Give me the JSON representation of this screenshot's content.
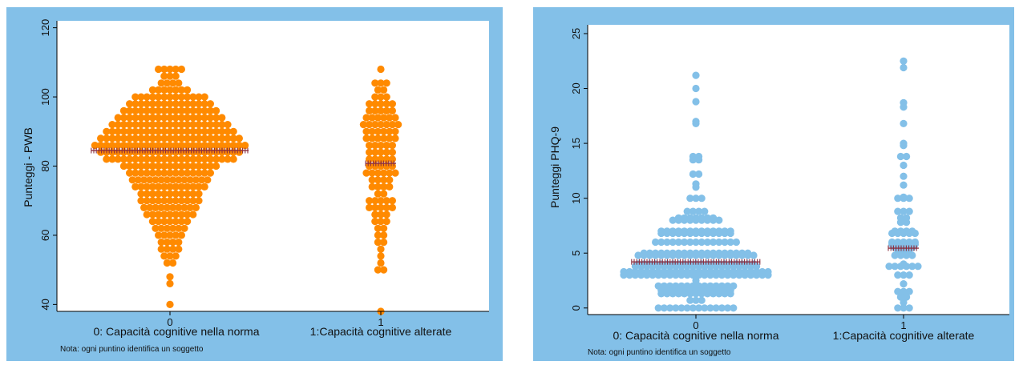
{
  "chart_data": [
    {
      "type": "scatter",
      "subtype": "dot-plot",
      "ylabel": "Punteggi - PWB",
      "ylim": [
        38,
        122
      ],
      "yticks": [
        "40",
        "60",
        "80",
        "100",
        "120"
      ],
      "categories": [
        "0",
        "1"
      ],
      "category_labels": [
        "0: Capacità cognitive nella norma",
        "1:Capacità cognitive alterate"
      ],
      "note": "Nota: ogni puntino identifica un soggetto",
      "marker_color": "#ff8a00",
      "mean_color": "#8b2e3f",
      "panel_color": "#83c0e8",
      "means": [
        84.5,
        80.8
      ],
      "groups": [
        {
          "category": "0",
          "values": [
            108,
            106,
            104,
            102,
            100,
            98,
            96,
            94,
            92,
            90,
            88,
            86,
            84,
            82,
            80,
            78,
            76,
            74,
            72,
            70,
            68,
            66,
            64,
            62,
            60,
            58,
            56,
            54,
            52,
            48,
            46,
            40
          ],
          "counts": [
            5,
            3,
            4,
            7,
            13,
            15,
            17,
            19,
            21,
            23,
            25,
            27,
            25,
            23,
            17,
            15,
            14,
            13,
            11,
            11,
            10,
            9,
            7,
            6,
            5,
            4,
            4,
            3,
            2,
            1,
            1,
            1
          ]
        },
        {
          "category": "1",
          "values": [
            108,
            104,
            102,
            100,
            98,
            96,
            94,
            92,
            90,
            88,
            86,
            84,
            82,
            80,
            78,
            76,
            74,
            72,
            70,
            68,
            66,
            64,
            62,
            60,
            58,
            56,
            54,
            52,
            50,
            38
          ],
          "counts": [
            1,
            3,
            2,
            3,
            5,
            5,
            6,
            7,
            6,
            6,
            5,
            5,
            5,
            5,
            6,
            4,
            4,
            2,
            5,
            5,
            3,
            3,
            2,
            2,
            2,
            1,
            1,
            1,
            2,
            1
          ]
        }
      ]
    },
    {
      "type": "scatter",
      "subtype": "dot-plot",
      "ylabel": "Punteggi PHQ-9",
      "ylim": [
        -0.6,
        25.8
      ],
      "yticks": [
        "0",
        "5",
        "10",
        "15",
        "20",
        "25"
      ],
      "categories": [
        "0",
        "1"
      ],
      "category_labels": [
        "0: Capacità cognitive nella norma",
        "1:Capacità cognitive alterate"
      ],
      "note": "Nota: ogni puntino identifica un soggetto",
      "marker_color": "#83c0e8",
      "mean_color": "#8b2e3f",
      "panel_color": "#83c0e8",
      "means": [
        4.2,
        5.45
      ],
      "groups": [
        {
          "category": "0",
          "values": [
            21.2,
            20,
            18.8,
            17,
            16.8,
            13.8,
            13.5,
            12.2,
            11.3,
            11,
            10,
            8.8,
            8.2,
            8,
            7,
            6.8,
            6,
            5,
            4.8,
            4,
            3.8,
            3.3,
            3,
            2.5,
            2,
            1.6,
            1.3,
            0.7,
            0
          ],
          "counts": [
            1,
            1,
            1,
            1,
            1,
            2,
            2,
            2,
            1,
            1,
            3,
            4,
            7,
            9,
            13,
            13,
            15,
            19,
            21,
            21,
            22,
            26,
            26,
            1,
            14,
            13,
            13,
            3,
            14
          ]
        },
        {
          "category": "1",
          "values": [
            22.5,
            21.9,
            18.7,
            18.3,
            16.8,
            15,
            14.8,
            13.8,
            13,
            12,
            11.2,
            10.1,
            10,
            8.8,
            8.2,
            7.8,
            7,
            6.8,
            6,
            5.8,
            5.5,
            5,
            4.8,
            4,
            3.8,
            3,
            2.2,
            1.5,
            1,
            0.5,
            0
          ],
          "counts": [
            1,
            1,
            1,
            1,
            1,
            1,
            1,
            2,
            1,
            1,
            1,
            1,
            3,
            3,
            2,
            2,
            4,
            5,
            5,
            5,
            4,
            3,
            4,
            1,
            6,
            3,
            1,
            3,
            2,
            1,
            3
          ]
        }
      ]
    }
  ]
}
